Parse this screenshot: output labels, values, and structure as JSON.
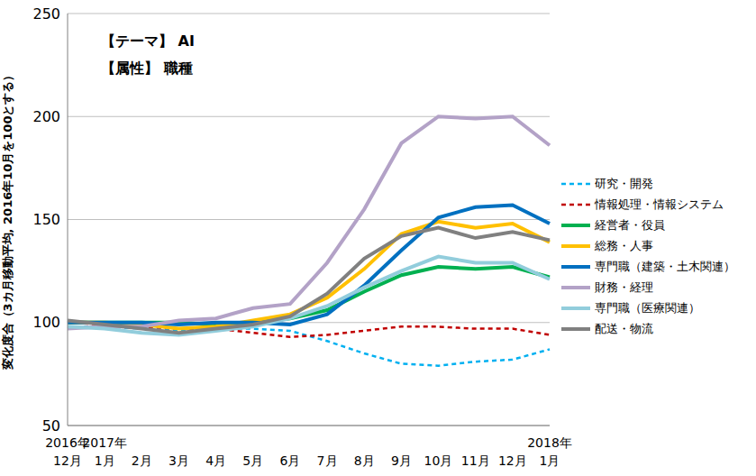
{
  "chart_data": {
    "type": "line",
    "annotations": [
      "【テーマ】 AI",
      "【属性】 職種"
    ],
    "y_label": "変化度合（3カ月移動平均, 2016年10月を100とする）",
    "categories": [
      "2016年12月",
      "2017年1月",
      "2月",
      "3月",
      "4月",
      "5月",
      "6月",
      "7月",
      "8月",
      "9月",
      "10月",
      "11月",
      "12月",
      "2018年1月"
    ],
    "ylim": [
      50,
      250
    ],
    "yticks": [
      50,
      100,
      150,
      200,
      250
    ],
    "grid": true,
    "legend": "right",
    "series": [
      {
        "name": "研究・開発",
        "color": "#00b0f0",
        "line_style": "dashed",
        "values": [
          98,
          98,
          97,
          96,
          97,
          97,
          96,
          91,
          85,
          80,
          79,
          81,
          82,
          87
        ]
      },
      {
        "name": "情報処理・情報システム",
        "color": "#c00000",
        "line_style": "dashed",
        "values": [
          100,
          99,
          98,
          97,
          97,
          95,
          93,
          94,
          96,
          98,
          98,
          97,
          97,
          94
        ]
      },
      {
        "name": "経営者・役員",
        "color": "#00b050",
        "line_style": "solid",
        "values": [
          100,
          100,
          100,
          100,
          99,
          100,
          102,
          106,
          115,
          123,
          127,
          126,
          127,
          122
        ]
      },
      {
        "name": "総務・人事",
        "color": "#ffc000",
        "line_style": "solid",
        "values": [
          100,
          100,
          99,
          97,
          98,
          101,
          104,
          112,
          126,
          143,
          149,
          146,
          148,
          139
        ]
      },
      {
        "name": "専門職（建築・土木関連）",
        "color": "#0070c0",
        "line_style": "solid",
        "values": [
          100,
          100,
          100,
          99,
          100,
          100,
          99,
          104,
          118,
          135,
          151,
          156,
          157,
          148
        ]
      },
      {
        "name": "財務・経理",
        "color": "#b3a2c7",
        "line_style": "solid",
        "values": [
          97,
          98,
          98,
          101,
          102,
          107,
          109,
          129,
          155,
          187,
          200,
          199,
          200,
          186
        ]
      },
      {
        "name": "専門職（医療関連）",
        "color": "#92cddc",
        "line_style": "solid",
        "values": [
          98,
          97,
          95,
          94,
          96,
          98,
          102,
          108,
          117,
          125,
          132,
          129,
          129,
          121
        ]
      },
      {
        "name": "配送・物流",
        "color": "#808080",
        "line_style": "solid",
        "values": [
          101,
          99,
          97,
          95,
          97,
          99,
          103,
          114,
          131,
          142,
          146,
          141,
          144,
          140
        ]
      }
    ]
  }
}
